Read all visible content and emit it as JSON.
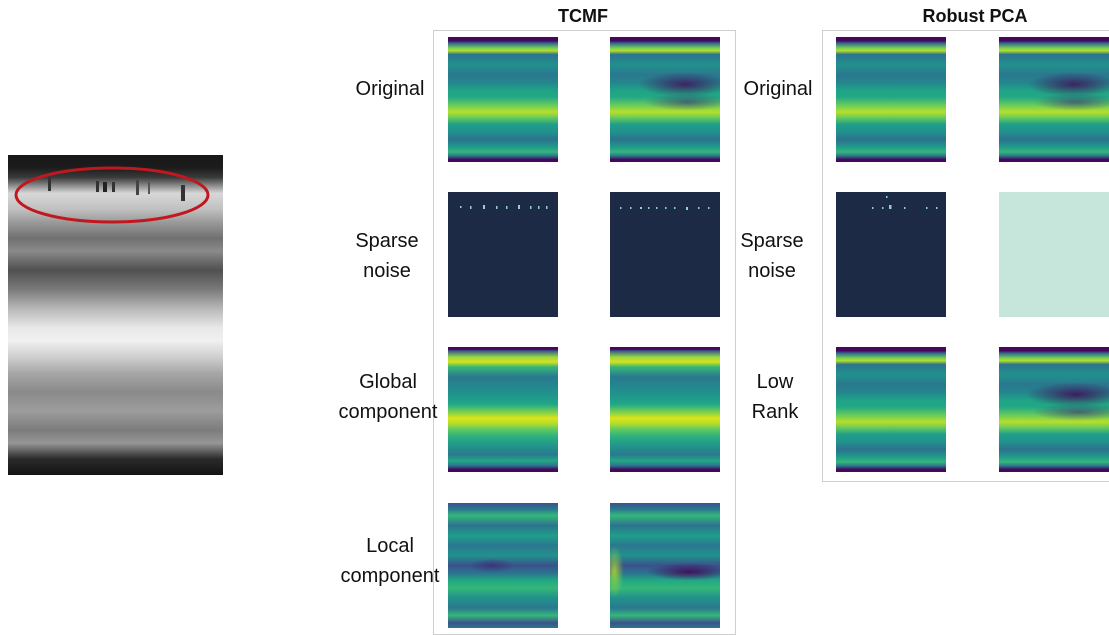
{
  "headers": {
    "tcmf": "TCMF",
    "robust_pca": "Robust PCA"
  },
  "tcmf_rows": [
    {
      "label": "Original"
    },
    {
      "label": "Sparse\nnoise"
    },
    {
      "label": "Global\ncomponent"
    },
    {
      "label": "Local\ncomponent"
    }
  ],
  "rpca_rows": [
    {
      "label": "Original"
    },
    {
      "label": "Sparse\nnoise"
    },
    {
      "label": "Low\nRank"
    }
  ],
  "colors": {
    "ellipse": "#c0181e",
    "sparse_dark": "#1c2a46",
    "sparse_flat": "#c6e6dc",
    "panel_border": "#cfcfcf"
  }
}
